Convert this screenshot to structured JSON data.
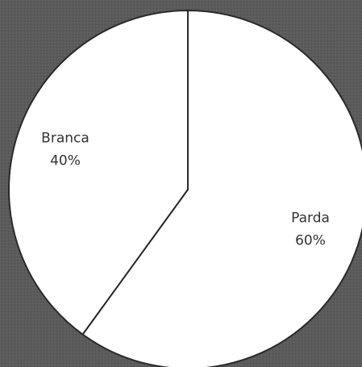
{
  "chart_data": {
    "type": "pie",
    "categories": [
      "Parda",
      "Branca"
    ],
    "values": [
      60,
      40
    ],
    "value_labels": [
      "60%",
      "40%"
    ],
    "colors": [
      "#ffffff",
      "#ffffff"
    ]
  }
}
